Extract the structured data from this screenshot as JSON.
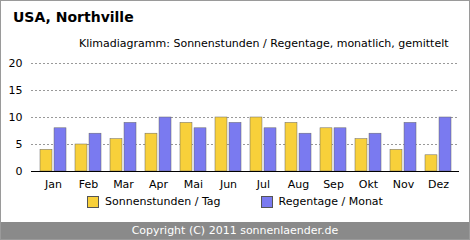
{
  "chart_data": {
    "type": "bar",
    "title": "USA, Northville",
    "subtitle": "Klimadiagramm: Sonnenstunden / Regentage, monatlich, gemittelt",
    "categories": [
      "Jan",
      "Feb",
      "Mar",
      "Apr",
      "Mai",
      "Jun",
      "Jul",
      "Aug",
      "Sep",
      "Okt",
      "Nov",
      "Dez"
    ],
    "series": [
      {
        "name": "Sonnenstunden / Tag",
        "color": "#f8d03a",
        "values": [
          4,
          5,
          6,
          7,
          9,
          10,
          10,
          9,
          8,
          6,
          4,
          3
        ]
      },
      {
        "name": "Regentage / Monat",
        "color": "#7a7af0",
        "values": [
          8,
          7,
          9,
          10,
          8,
          9,
          8,
          7,
          8,
          7,
          9,
          10
        ]
      }
    ],
    "ylim": [
      0,
      20
    ],
    "yticks": [
      0,
      5,
      10,
      15,
      20
    ],
    "grid": true,
    "legend": "bottom",
    "caption": "Copyright (C) 2011 sonnenlaender.de"
  }
}
